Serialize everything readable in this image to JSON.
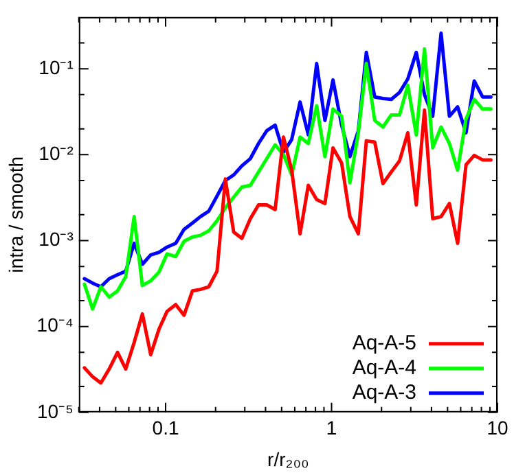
{
  "chart_data": {
    "type": "line",
    "xlabel": "r/r₂₀₀",
    "ylabel": "intra / smooth",
    "log": "xy",
    "legend": "bottom right",
    "grid": false,
    "x": [
      0.0324,
      0.0363,
      0.0407,
      0.0457,
      0.0513,
      0.0575,
      0.0646,
      0.0724,
      0.0813,
      0.0912,
      0.102,
      0.115,
      0.129,
      0.145,
      0.162,
      0.182,
      0.204,
      0.229,
      0.257,
      0.288,
      0.324,
      0.363,
      0.407,
      0.457,
      0.513,
      0.575,
      0.646,
      0.724,
      0.813,
      0.912,
      1.02,
      1.15,
      1.29,
      1.45,
      1.62,
      1.82,
      2.04,
      2.29,
      2.57,
      2.88,
      3.24,
      3.63,
      4.07,
      4.57,
      5.13,
      5.75,
      6.46,
      7.24,
      8.13,
      9.12
    ],
    "xlim": [
      0.03,
      10
    ],
    "xticks": [
      {
        "value": 0.03,
        "label": null
      },
      {
        "value": 0.04,
        "label": null
      },
      {
        "value": 0.05,
        "label": null
      },
      {
        "value": 0.06,
        "label": null
      },
      {
        "value": 0.07,
        "label": null
      },
      {
        "value": 0.08,
        "label": null
      },
      {
        "value": 0.09,
        "label": null
      },
      0.1,
      {
        "value": 0.2,
        "label": null
      },
      {
        "value": 0.3,
        "label": null
      },
      {
        "value": 0.4,
        "label": null
      },
      {
        "value": 0.5,
        "label": null
      },
      {
        "value": 0.6,
        "label": null
      },
      {
        "value": 0.7,
        "label": null
      },
      {
        "value": 0.8,
        "label": null
      },
      {
        "value": 0.9,
        "label": null
      },
      1,
      {
        "value": 2,
        "label": null
      },
      {
        "value": 3,
        "label": null
      },
      {
        "value": 4,
        "label": null
      },
      {
        "value": 5,
        "label": null
      },
      {
        "value": 6,
        "label": null
      },
      {
        "value": 7,
        "label": null
      },
      {
        "value": 8,
        "label": null
      },
      {
        "value": 9,
        "label": null
      },
      10
    ],
    "ylim": [
      1e-05,
      0.4
    ],
    "yticks": [
      {
        "value": 1e-05,
        "label": "10⁻⁵"
      },
      {
        "value": 2e-05,
        "label": null
      },
      {
        "value": 5e-05,
        "label": null
      },
      {
        "value": 0.0001,
        "label": "10⁻⁴"
      },
      {
        "value": 0.0002,
        "label": null
      },
      {
        "value": 0.0005,
        "label": null
      },
      {
        "value": 0.001,
        "label": "10⁻³"
      },
      {
        "value": 0.002,
        "label": null
      },
      {
        "value": 0.005,
        "label": null
      },
      {
        "value": 0.01,
        "label": "10⁻²"
      },
      {
        "value": 0.02,
        "label": null
      },
      {
        "value": 0.05,
        "label": null
      },
      {
        "value": 0.1,
        "label": "10⁻¹"
      },
      {
        "value": 0.2,
        "label": null
      }
    ],
    "line_style": "solid",
    "marker": "none",
    "series": [
      {
        "name": "Aq-A-5",
        "color": "#ff0000",
        "values": [
          3.3e-05,
          2.6e-05,
          2.2e-05,
          3.2e-05,
          5e-05,
          3.2e-05,
          6.5e-05,
          0.00014,
          4.7e-05,
          9.3e-05,
          0.00015,
          0.00018,
          0.000135,
          0.00026,
          0.00027,
          0.00029,
          0.00044,
          0.0052,
          0.00126,
          0.00106,
          0.0018,
          0.0026,
          0.0026,
          0.0023,
          0.016,
          0.0066,
          0.0012,
          0.0044,
          0.003,
          0.0027,
          0.012,
          0.008,
          0.0019,
          0.0012,
          0.0145,
          0.014,
          0.0046,
          0.0063,
          0.0085,
          0.018,
          0.0026,
          0.033,
          0.0018,
          0.0019,
          0.0027,
          0.00093,
          0.0076,
          0.0098,
          0.0087,
          0.0087
        ]
      },
      {
        "name": "Aq-A-4",
        "color": "#00ff00",
        "values": [
          0.00031,
          0.00016,
          0.00029,
          0.00022,
          0.00026,
          0.00038,
          0.0019,
          0.0003,
          0.00034,
          0.00043,
          0.0007,
          0.00065,
          0.00098,
          0.0011,
          0.00115,
          0.0013,
          0.0017,
          0.0024,
          0.0032,
          0.0042,
          0.0044,
          0.0063,
          0.009,
          0.013,
          0.01,
          0.0058,
          0.016,
          0.0135,
          0.037,
          0.0095,
          0.034,
          0.028,
          0.0047,
          0.018,
          0.115,
          0.025,
          0.021,
          0.029,
          0.029,
          0.064,
          0.017,
          0.17,
          0.012,
          0.021,
          0.0135,
          0.0066,
          0.026,
          0.044,
          0.034,
          0.034
        ]
      },
      {
        "name": "Aq-A-3",
        "color": "#0000ff",
        "values": [
          0.00036,
          0.00032,
          0.00029,
          0.00036,
          0.0004,
          0.00044,
          0.00093,
          0.00053,
          0.00068,
          0.00073,
          0.00084,
          0.00093,
          0.00135,
          0.0016,
          0.0019,
          0.0022,
          0.0033,
          0.005,
          0.0058,
          0.0074,
          0.009,
          0.0135,
          0.019,
          0.022,
          0.0107,
          0.015,
          0.041,
          0.017,
          0.115,
          0.025,
          0.074,
          0.022,
          0.0095,
          0.019,
          0.155,
          0.047,
          0.045,
          0.044,
          0.053,
          0.076,
          0.155,
          0.05,
          0.028,
          0.26,
          0.028,
          0.036,
          0.018,
          0.072,
          0.047,
          0.047
        ]
      }
    ]
  }
}
